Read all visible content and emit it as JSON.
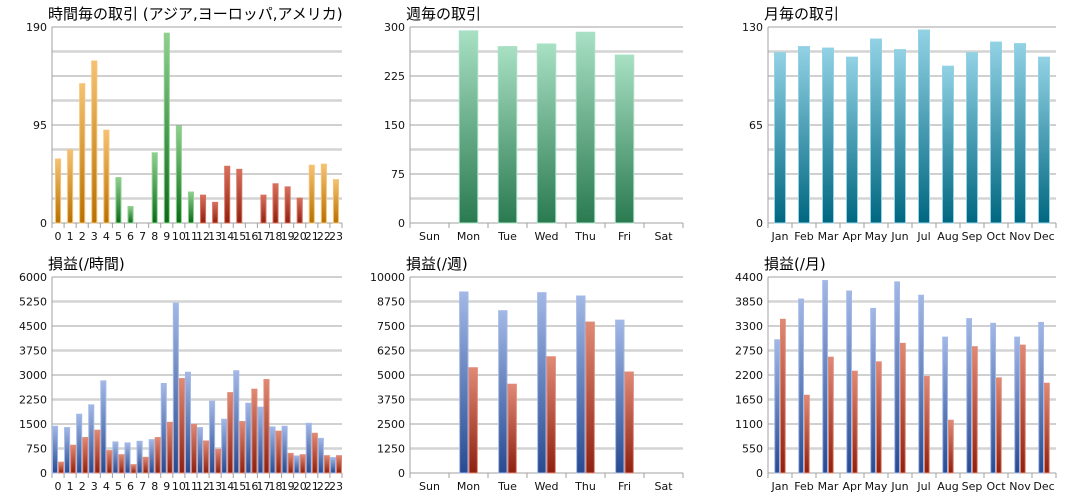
{
  "colors": {
    "orange": [
      "#f5c272",
      "#b87000"
    ],
    "green": [
      "#8fd08f",
      "#0b6a1a"
    ],
    "red": [
      "#d8705e",
      "#8e2010"
    ],
    "blue": [
      "#a2b8e6",
      "#284a90"
    ],
    "pl_red": [
      "#e08a76",
      "#8e2010"
    ],
    "teal": [
      "#92d2e4",
      "#006780"
    ],
    "mint": [
      "#a8e0c4",
      "#2a7a50"
    ]
  },
  "chart_data": [
    {
      "id": "hourly-trades",
      "type": "bar",
      "title": "時間毎の取引 (アジア,ヨーロッパ,アメリカ)",
      "ylim": [
        0,
        190
      ],
      "yticks": [
        0,
        95,
        190
      ],
      "grid": true,
      "categories": [
        "0",
        "1",
        "2",
        "3",
        "4",
        "5",
        "6",
        "7",
        "8",
        "9",
        "10",
        "11",
        "12",
        "13",
        "14",
        "15",
        "16",
        "17",
        "18",
        "19",
        "20",
        "21",
        "22",
        "23"
      ],
      "series": [
        {
          "values": [
            62,
            71,
            135,
            157,
            90,
            44,
            16,
            0,
            68,
            184,
            94,
            30,
            27,
            20,
            55,
            52,
            0,
            27,
            38,
            35,
            24,
            56,
            57,
            42
          ],
          "colors": [
            "orange",
            "orange",
            "orange",
            "orange",
            "orange",
            "green",
            "green",
            "green",
            "green",
            "green",
            "green",
            "green",
            "red",
            "red",
            "red",
            "red",
            "red",
            "red",
            "red",
            "red",
            "red",
            "orange",
            "orange",
            "orange"
          ]
        }
      ]
    },
    {
      "id": "weekly-trades",
      "type": "bar",
      "title": "週毎の取引",
      "ylim": [
        0,
        300
      ],
      "yticks": [
        0,
        75,
        150,
        225,
        300
      ],
      "grid": true,
      "categories": [
        "Sun",
        "Mon",
        "Tue",
        "Wed",
        "Thu",
        "Fri",
        "Sat"
      ],
      "series": [
        {
          "values": [
            0,
            294,
            270,
            274,
            292,
            257,
            0
          ],
          "color": "mint"
        }
      ]
    },
    {
      "id": "monthly-trades",
      "type": "bar",
      "title": "月毎の取引",
      "ylim": [
        0,
        130
      ],
      "yticks": [
        0,
        65,
        130
      ],
      "grid": true,
      "categories": [
        "Jan",
        "Feb",
        "Mar",
        "Apr",
        "May",
        "Jun",
        "Jul",
        "Aug",
        "Sep",
        "Oct",
        "Nov",
        "Dec"
      ],
      "series": [
        {
          "values": [
            113,
            117,
            116,
            110,
            122,
            115,
            128,
            104,
            113,
            120,
            119,
            110
          ],
          "color": "teal"
        }
      ]
    },
    {
      "id": "hourly-pl",
      "type": "bar",
      "title": "損益(/時間)",
      "ylim": [
        0,
        6000
      ],
      "yticks": [
        0,
        750,
        1500,
        2250,
        3000,
        3750,
        4500,
        5250,
        6000
      ],
      "grid": true,
      "categories": [
        "0",
        "1",
        "2",
        "3",
        "4",
        "5",
        "6",
        "7",
        "8",
        "9",
        "10",
        "11",
        "12",
        "13",
        "14",
        "15",
        "16",
        "17",
        "18",
        "19",
        "20",
        "21",
        "22",
        "23"
      ],
      "series": [
        {
          "values": [
            1430,
            1390,
            1800,
            2085,
            2820,
            950,
            920,
            970,
            1020,
            2740,
            5200,
            3085,
            1390,
            2200,
            1645,
            3130,
            2135,
            2015,
            1410,
            1430,
            520,
            1520,
            1060,
            470
          ],
          "color": "blue"
        },
        {
          "values": [
            330,
            850,
            1085,
            1310,
            685,
            560,
            255,
            480,
            1085,
            1550,
            2890,
            1490,
            980,
            725,
            2460,
            1575,
            2565,
            2860,
            1280,
            600,
            560,
            1215,
            530,
            530
          ],
          "color": "pl_red"
        }
      ]
    },
    {
      "id": "weekly-pl",
      "type": "bar",
      "title": "損益(/週)",
      "ylim": [
        0,
        10000
      ],
      "yticks": [
        0,
        1250,
        2500,
        3750,
        5000,
        6250,
        7500,
        8750,
        10000
      ],
      "grid": true,
      "categories": [
        "Sun",
        "Mon",
        "Tue",
        "Wed",
        "Thu",
        "Fri",
        "Sat"
      ],
      "series": [
        {
          "values": [
            0,
            9235,
            8280,
            9200,
            9030,
            7800,
            0
          ],
          "color": "blue"
        },
        {
          "values": [
            0,
            5370,
            4530,
            5930,
            7700,
            5150,
            0
          ],
          "color": "pl_red"
        }
      ]
    },
    {
      "id": "monthly-pl",
      "type": "bar",
      "title": "損益(/月)",
      "ylim": [
        0,
        4400
      ],
      "yticks": [
        0,
        550,
        1100,
        1650,
        2200,
        2750,
        3300,
        3850,
        4400
      ],
      "grid": true,
      "categories": [
        "Jan",
        "Feb",
        "Mar",
        "Apr",
        "May",
        "Jun",
        "Jul",
        "Aug",
        "Sep",
        "Oct",
        "Nov",
        "Dec"
      ],
      "series": [
        {
          "values": [
            2990,
            3905,
            4320,
            4085,
            3695,
            4290,
            3990,
            3050,
            3465,
            3360,
            3050,
            3380
          ],
          "color": "blue"
        },
        {
          "values": [
            3450,
            1745,
            2600,
            2285,
            2495,
            2910,
            2165,
            1185,
            2835,
            2135,
            2870,
            2015
          ],
          "color": "pl_red"
        }
      ]
    }
  ]
}
